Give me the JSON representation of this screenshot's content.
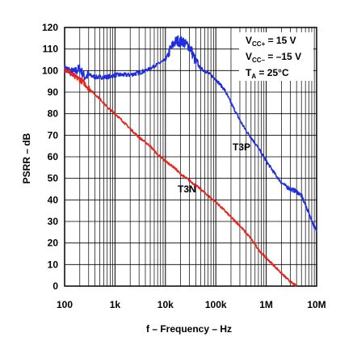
{
  "chart_data": {
    "type": "line",
    "title": "",
    "xlabel": "f – Frequency – Hz",
    "ylabel": "PSRR – dB",
    "xscale": "log",
    "xlim": [
      100,
      10000000
    ],
    "ylim": [
      0,
      120
    ],
    "grid": true,
    "x_tick_labels": [
      "100",
      "1k",
      "10k",
      "100k",
      "1M",
      "10M"
    ],
    "x_tick_values": [
      100,
      1000,
      10000,
      100000,
      1000000,
      10000000
    ],
    "y_ticks": [
      0,
      10,
      20,
      30,
      40,
      50,
      60,
      70,
      80,
      90,
      100,
      110,
      120
    ],
    "annotations": {
      "vcc_pos": {
        "prefix": "V",
        "sub": "CC+",
        "value": " = 15 V"
      },
      "vcc_neg": {
        "prefix": "V",
        "sub": "CC–",
        "value": " = –15 V"
      },
      "ta": {
        "prefix": "T",
        "sub": "A",
        "value": " = 25°C"
      }
    },
    "series": [
      {
        "name": "T3P",
        "color": "#1f2fe0",
        "x": [
          100,
          150,
          200,
          250,
          300,
          400,
          500,
          700,
          1000,
          1500,
          2000,
          3000,
          4000,
          5000,
          7000,
          10000,
          12000,
          15000,
          18000,
          20000,
          22000,
          25000,
          28000,
          32000,
          40000,
          50000,
          70000,
          100000,
          150000,
          200000,
          300000,
          400000,
          500000,
          700000,
          1000000,
          1500000,
          2000000,
          3000000,
          4000000,
          5000000,
          7000000,
          10000000
        ],
        "y": [
          101,
          99,
          101,
          97,
          98,
          97,
          97,
          97,
          98,
          98,
          98,
          99,
          100,
          101,
          103,
          105,
          109,
          113,
          114,
          113,
          114,
          112,
          112,
          110,
          104,
          101,
          99,
          96,
          91,
          85,
          77,
          72,
          69,
          64,
          58,
          52,
          48,
          45,
          44,
          42,
          34,
          25
        ]
      },
      {
        "name": "T3N",
        "color": "#e8221c",
        "x": [
          100,
          130,
          160,
          200,
          250,
          300,
          400,
          500,
          700,
          1000,
          1500,
          2000,
          3000,
          5000,
          7000,
          10000,
          15000,
          20000,
          30000,
          50000,
          70000,
          100000,
          150000,
          200000,
          300000,
          500000,
          700000,
          1000000,
          1500000,
          2000000,
          3000000,
          4000000
        ],
        "y": [
          101,
          99,
          97,
          96,
          94,
          92,
          89,
          87,
          83,
          80,
          76,
          73,
          69,
          65,
          61,
          58,
          55,
          52,
          49,
          45,
          42,
          39,
          35,
          32,
          28,
          22,
          17,
          13,
          9,
          6,
          2,
          0
        ]
      }
    ]
  }
}
